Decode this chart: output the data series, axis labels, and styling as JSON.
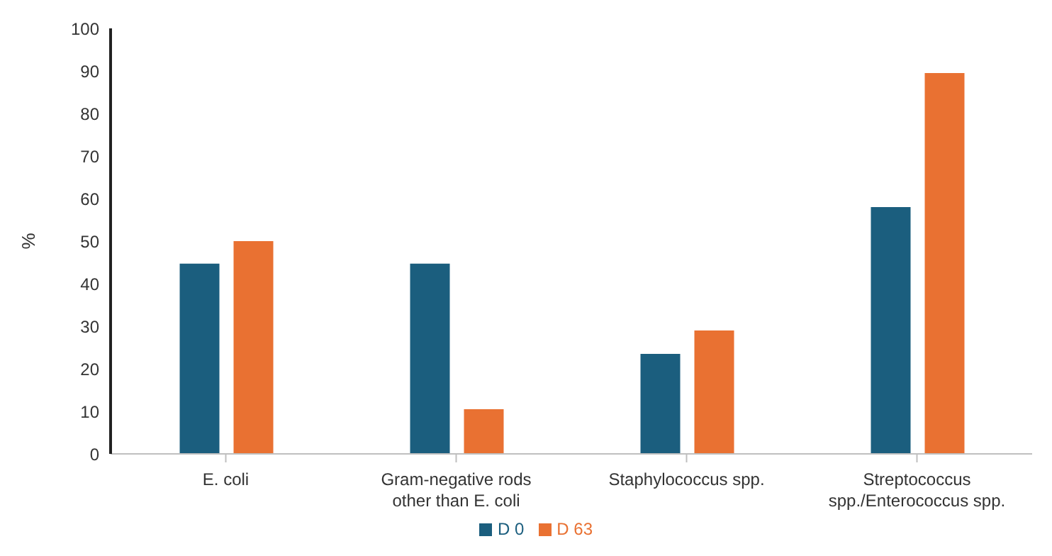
{
  "chart_data": {
    "type": "bar",
    "ylabel": "%",
    "categories": [
      "E. coli",
      "Gram-negative rods other than E. coli",
      "Staphylococcus spp.",
      "Streptococcus spp./Enterococcus spp."
    ],
    "series": [
      {
        "name": "D 0",
        "color": "#1b5e7e",
        "values": [
          44.7,
          44.7,
          23.5,
          58
        ]
      },
      {
        "name": "D 63",
        "color": "#e97132",
        "values": [
          50,
          10.5,
          29,
          89.5
        ]
      }
    ],
    "ylim": [
      0,
      100
    ],
    "yticks": [
      0,
      10,
      20,
      30,
      40,
      50,
      60,
      70,
      80,
      90,
      100
    ],
    "grid": false,
    "legend": "bottom"
  }
}
